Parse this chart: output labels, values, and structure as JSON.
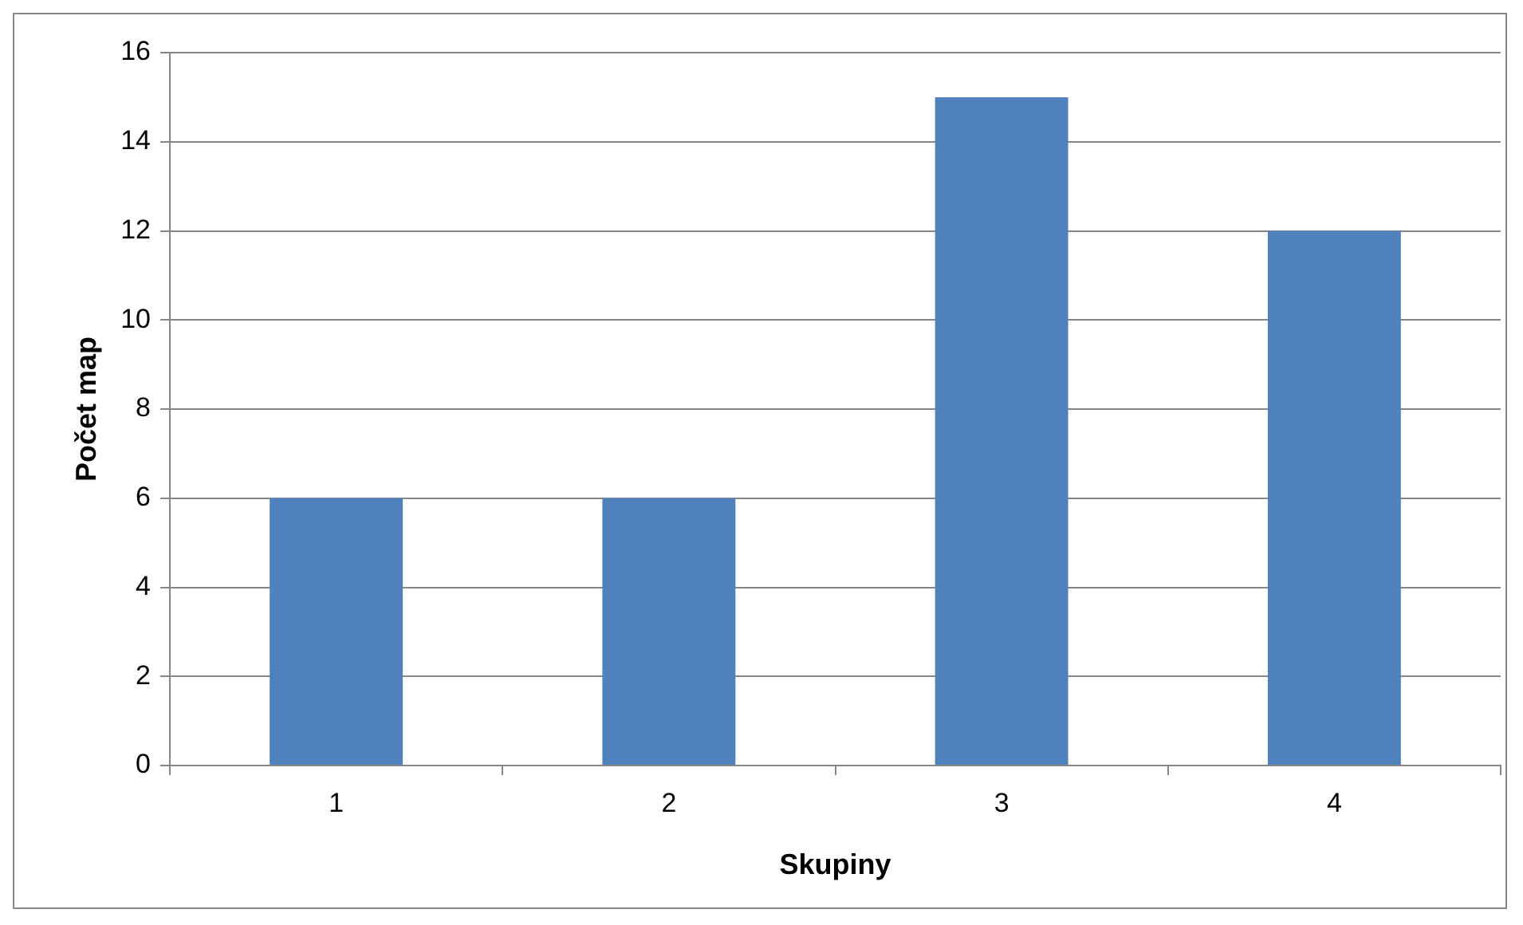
{
  "chart_data": {
    "type": "bar",
    "xlabel": "Skupiny",
    "ylabel": "Počet map",
    "categories": [
      "1",
      "2",
      "3",
      "4"
    ],
    "values": [
      6,
      6,
      15,
      12
    ],
    "color": "#4f81bd",
    "ylim": [
      0,
      16
    ],
    "yticks": [
      0,
      2,
      4,
      6,
      8,
      10,
      12,
      14,
      16
    ],
    "grid": "y",
    "legend": false
  }
}
